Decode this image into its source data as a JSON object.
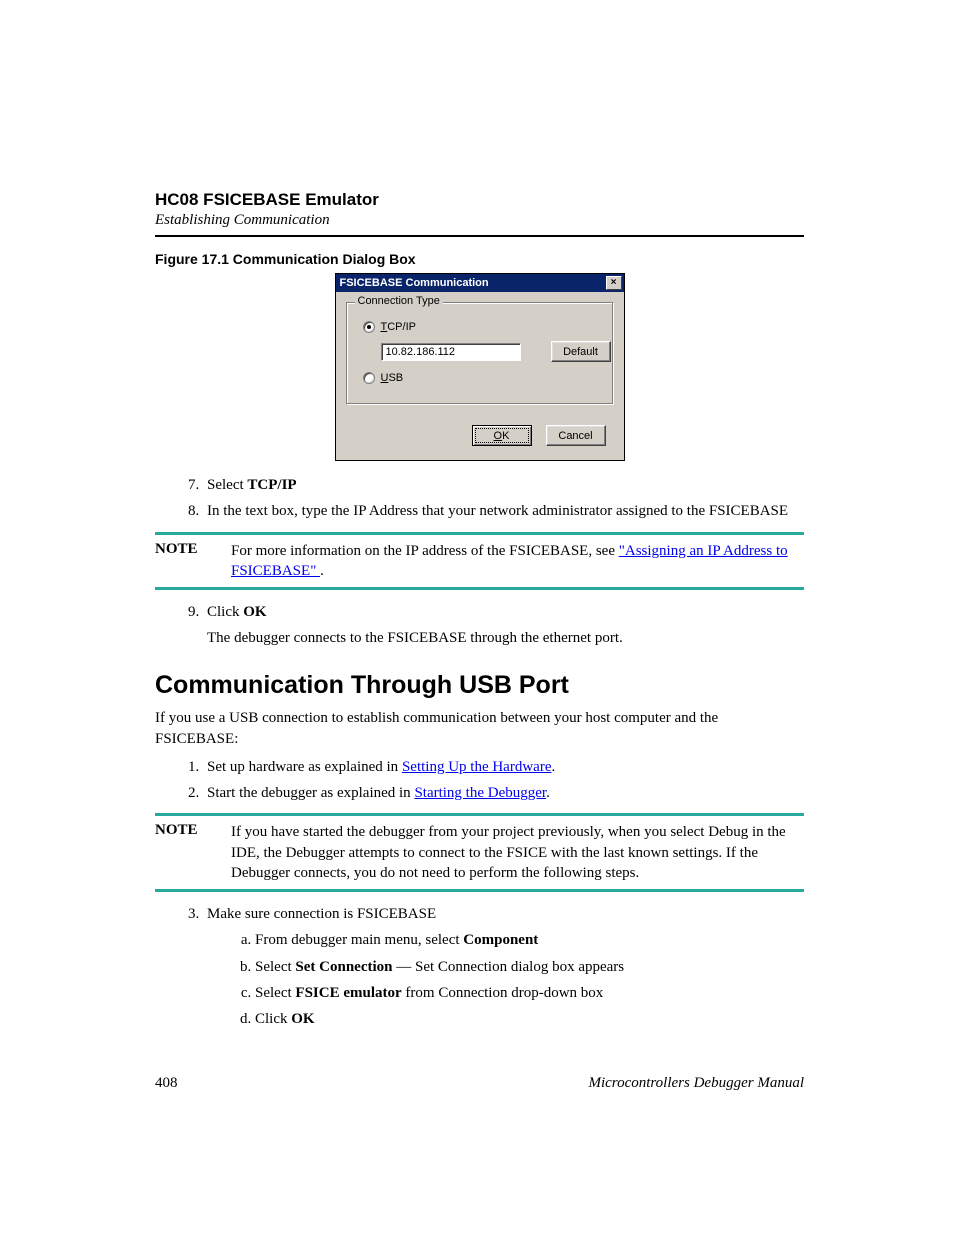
{
  "header": {
    "title": "HC08 FSICEBASE Emulator",
    "subtitle": "Establishing Communication"
  },
  "figure": {
    "caption": "Figure 17.1  Communication Dialog Box"
  },
  "dialog": {
    "title": "FSICEBASE Communication",
    "close_glyph": "×",
    "group_label": "Connection Type",
    "radio_tcpip_pre": "T",
    "radio_tcpip_rest": "CP/IP",
    "ip_value": "10.82.186.112",
    "default_btn": "Default",
    "radio_usb_pre": "U",
    "radio_usb_rest": "SB",
    "ok_pre": "O",
    "ok_rest": "K",
    "cancel": "Cancel"
  },
  "steps1": {
    "s7_pre": "Select ",
    "s7_bold": "TCP/IP",
    "s8": "In the text box, type the IP Address that your network administrator assigned to the FSICEBASE"
  },
  "note1": {
    "label": "NOTE",
    "body_pre": "For more information on the IP address of the FSICEBASE, see ",
    "link": "\"Assigning an IP Address to FSICEBASE\" ",
    "body_post": "."
  },
  "steps2": {
    "s9_pre": "Click ",
    "s9_bold": "OK",
    "s9_after": "The debugger connects to the FSICEBASE through the ethernet port."
  },
  "section": {
    "title": "Communication Through USB Port",
    "intro": "If you use a USB connection to establish communication between your host computer and the FSICEBASE:",
    "s1_pre": "Set up hardware as explained in ",
    "s1_link": "Setting Up the Hardware",
    "s1_post": ".",
    "s2_pre": "Start the debugger as explained in ",
    "s2_link": "Starting the Debugger",
    "s2_post": "."
  },
  "note2": {
    "label": "NOTE",
    "body": "If you have started the debugger from your project previously, when you select Debug in the IDE, the Debugger attempts to connect to the FSICE with the last known settings. If the Debugger connects, you do not need to perform the following steps."
  },
  "steps3": {
    "s3": "Make sure connection is FSICEBASE",
    "a_pre": "From debugger main menu, select ",
    "a_bold": "Component",
    "b_pre": "Select ",
    "b_bold": "Set Connection",
    "b_post": " — Set Connection dialog box appears",
    "c_pre": "Select ",
    "c_bold": "FSICE emulator",
    "c_post": " from Connection drop-down box",
    "d_pre": "Click ",
    "d_bold": "OK"
  },
  "footer": {
    "page": "408",
    "manual": "Microcontrollers Debugger Manual"
  },
  "colors": {
    "note_rule": "#29a8a0",
    "link": "#0000ee",
    "titlebar": "#0a246a",
    "dialog_bg": "#d4d0c8"
  }
}
